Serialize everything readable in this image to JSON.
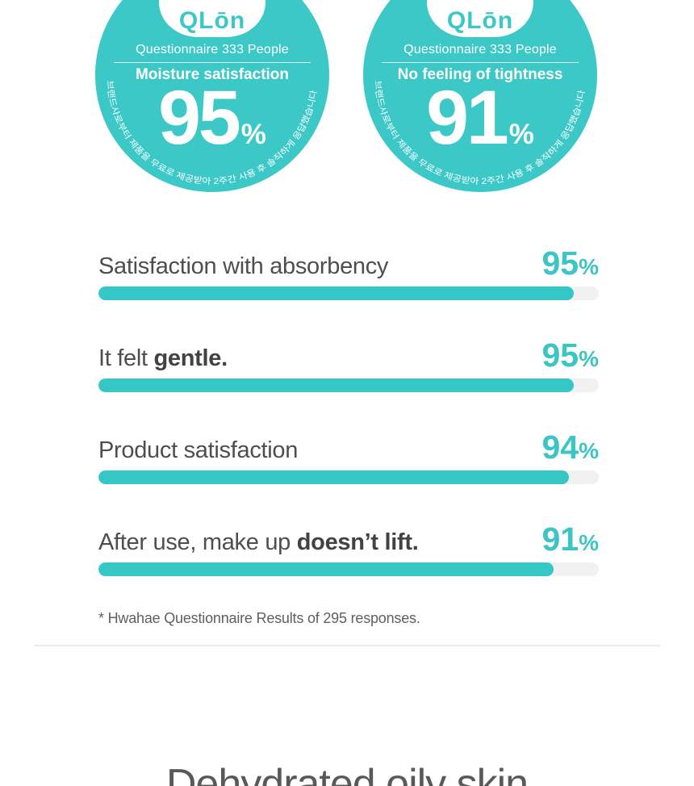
{
  "colors": {
    "accent_teal": "#3cc8c7",
    "bar_fill": "#35c7c5",
    "bar_track": "#f1f1f1",
    "label_gray": "#4e4e4e",
    "heading_gray": "#595959"
  },
  "badges": {
    "logo_text": "QLōn",
    "survey_label": "Questionnaire 333 People",
    "disclaimer_korean": "브랜드사로부터 제품을 무료로 제공받아 2주간 사용 후 솔직하게 응답했습니다",
    "items": [
      {
        "title": "Moisture satisfaction",
        "value": 95,
        "unit": "%"
      },
      {
        "title": "No feeling of tightness",
        "value": 91,
        "unit": "%"
      }
    ]
  },
  "stats": {
    "rows": [
      {
        "label": "Satisfaction with absorbency",
        "label_bold": "",
        "value": 95,
        "unit": "%"
      },
      {
        "label": "It felt ",
        "label_bold": "gentle.",
        "value": 95,
        "unit": "%"
      },
      {
        "label": "Product satisfaction",
        "label_bold": "",
        "value": 94,
        "unit": "%"
      },
      {
        "label": "After use, make up ",
        "label_bold": "doesn’t lift.",
        "value": 91,
        "unit": "%"
      }
    ],
    "footnote": "* Hwahae Questionnaire Results of 295 responses."
  },
  "next_section": {
    "heading": "Dehydrated oily skin"
  },
  "chart_data": {
    "type": "bar",
    "orientation": "horizontal",
    "categories": [
      "Satisfaction with absorbency",
      "It felt gentle.",
      "Product satisfaction",
      "After use, make up doesn’t lift."
    ],
    "values": [
      95,
      95,
      94,
      91
    ],
    "unit": "%",
    "xlim": [
      0,
      100
    ],
    "title": "",
    "annotations": [
      "* Hwahae Questionnaire Results of 295 responses."
    ],
    "badge_stats": [
      {
        "label": "Moisture satisfaction",
        "value": 95,
        "survey": "Questionnaire 333 People"
      },
      {
        "label": "No feeling of tightness",
        "value": 91,
        "survey": "Questionnaire 333 People"
      }
    ]
  }
}
